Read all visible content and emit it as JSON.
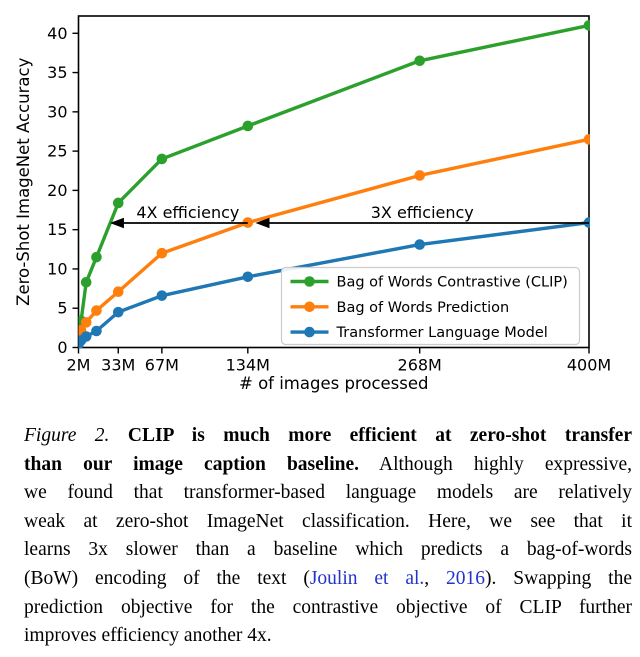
{
  "chart_data": {
    "type": "line",
    "x_unit": "millions of images",
    "x": [
      2,
      4,
      8,
      16,
      33,
      67,
      134,
      268,
      400
    ],
    "series": [
      {
        "name": "Bag of Words Contrastive (CLIP)",
        "color": "#2ca02c",
        "values": [
          0.6,
          3.4,
          8.3,
          11.5,
          18.4,
          24.0,
          28.2,
          36.5,
          41.0
        ]
      },
      {
        "name": "Bag of Words Prediction",
        "color": "#ff7f0e",
        "values": [
          1.2,
          2.2,
          3.2,
          4.7,
          7.1,
          12.0,
          15.9,
          21.9,
          26.5
        ]
      },
      {
        "name": "Transformer Language Model",
        "color": "#1f77b4",
        "values": [
          0.4,
          0.9,
          1.4,
          2.1,
          4.5,
          6.6,
          9.0,
          13.1,
          15.9
        ]
      }
    ],
    "xlabel": "# of images processed",
    "ylabel": "Zero-Shot ImageNet Accuracy",
    "xlim": [
      2,
      400
    ],
    "ylim": [
      0,
      42.2
    ],
    "xticks": [
      {
        "v": 2,
        "label": "2M"
      },
      {
        "v": 33,
        "label": "33M"
      },
      {
        "v": 67,
        "label": "67M"
      },
      {
        "v": 134,
        "label": "134M"
      },
      {
        "v": 268,
        "label": "268M"
      },
      {
        "v": 400,
        "label": "400M"
      }
    ],
    "yticks": [
      0,
      5,
      10,
      15,
      20,
      25,
      30,
      35,
      40
    ],
    "grid": false,
    "legend_position": "lower right",
    "annotations": [
      {
        "text": "4X efficiency",
        "from_m": 134,
        "to_m": 26.5,
        "acc": 15.85,
        "label_dx": 9
      },
      {
        "text": "3X efficiency",
        "from_m": 400,
        "to_m": 140,
        "acc": 15.85,
        "label_dx": 0
      }
    ]
  },
  "caption": {
    "link_color": "#2233cc",
    "lines": [
      [
        {
          "t": "Figure 2.",
          "s": "i"
        },
        {
          "t": " ",
          "s": "n"
        },
        {
          "t": "CLIP is much more efficient at zero-shot transfer",
          "s": "b"
        }
      ],
      [
        {
          "t": "than our image caption baseline.",
          "s": "b"
        },
        {
          "t": " Although highly expressive,",
          "s": "n"
        }
      ],
      [
        {
          "t": "we found that transformer-based language models are relatively",
          "s": "n"
        }
      ],
      [
        {
          "t": "weak at zero-shot ImageNet classification. Here, we see that it",
          "s": "n"
        }
      ],
      [
        {
          "t": "learns 3x slower than a baseline which predicts a bag-of-words",
          "s": "n"
        }
      ],
      [
        {
          "t": "(BoW) encoding of the text (",
          "s": "n"
        },
        {
          "t": "Joulin et al.",
          "s": "l"
        },
        {
          "t": ", ",
          "s": "n"
        },
        {
          "t": "2016",
          "s": "l"
        },
        {
          "t": "). Swapping the",
          "s": "n"
        }
      ],
      [
        {
          "t": "prediction objective for the contrastive objective of CLIP further",
          "s": "n"
        }
      ],
      [
        {
          "t": "improves efficiency another 4x.",
          "s": "n"
        }
      ]
    ]
  }
}
